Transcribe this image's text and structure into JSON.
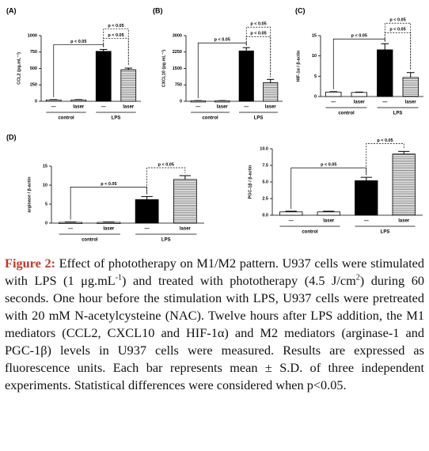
{
  "chart_data": [
    {
      "type": "bar",
      "label": "(A)",
      "ylabel": "CCL2 (pg.mL⁻¹)",
      "categories": [
        "—",
        "laser",
        "—",
        "laser"
      ],
      "groups": [
        "control",
        "LPS"
      ],
      "values": [
        20,
        20,
        760,
        480
      ],
      "errors": [
        5,
        5,
        30,
        25
      ],
      "colors": [
        "#ffffff",
        "#ffffff",
        "#000000",
        "#ffffff"
      ],
      "hatch": [
        false,
        false,
        false,
        true
      ],
      "ylim": [
        0,
        1000
      ],
      "yticks": [
        0,
        250,
        500,
        750,
        1000
      ],
      "annotations": [
        "p < 0.05",
        "p < 0.05",
        "p < 0.05"
      ]
    },
    {
      "type": "bar",
      "label": "(B)",
      "ylabel": "CXCL10 (pg.mL⁻¹)",
      "categories": [
        "—",
        "laser",
        "—",
        "laser"
      ],
      "groups": [
        "control",
        "LPS"
      ],
      "values": [
        20,
        20,
        2300,
        850
      ],
      "errors": [
        10,
        10,
        150,
        150
      ],
      "colors": [
        "#ffffff",
        "#ffffff",
        "#000000",
        "#ffffff"
      ],
      "hatch": [
        false,
        false,
        false,
        true
      ],
      "ylim": [
        0,
        3000
      ],
      "yticks": [
        0,
        750,
        1500,
        2250,
        3000
      ],
      "annotations": [
        "p < 0.05",
        "p < 0.05",
        "p < 0.05"
      ]
    },
    {
      "type": "bar",
      "label": "(C)",
      "ylabel": "HIF-1α / β-actin",
      "categories": [
        "—",
        "laser",
        "—",
        "laser"
      ],
      "groups": [
        "control",
        "LPS"
      ],
      "values": [
        1.1,
        1.0,
        11.5,
        4.7
      ],
      "errors": [
        0.1,
        0.1,
        1.5,
        1.2
      ],
      "colors": [
        "#ffffff",
        "#ffffff",
        "#000000",
        "#ffffff"
      ],
      "hatch": [
        false,
        false,
        false,
        true
      ],
      "ylim": [
        0,
        15
      ],
      "yticks": [
        0,
        5,
        10,
        15
      ],
      "annotations": [
        "p < 0.05",
        "p < 0.05",
        "p < 0.05"
      ]
    },
    {
      "type": "bar",
      "label": "(D)",
      "ylabel": "arginase / β-actin",
      "categories": [
        "—",
        "laser",
        "—",
        "laser"
      ],
      "groups": [
        "control",
        "LPS"
      ],
      "values": [
        0.2,
        0.2,
        6.2,
        11.5
      ],
      "errors": [
        0.1,
        0.1,
        0.8,
        1.0
      ],
      "colors": [
        "#ffffff",
        "#ffffff",
        "#000000",
        "#ffffff"
      ],
      "hatch": [
        false,
        false,
        false,
        true
      ],
      "ylim": [
        0,
        15
      ],
      "yticks": [
        0,
        5,
        10,
        15
      ],
      "annotations": [
        "p < 0.05",
        "p < 0.05"
      ]
    },
    {
      "type": "bar",
      "ylabel": "PGC-1β / β-actin",
      "categories": [
        "—",
        "laser",
        "—",
        "laser"
      ],
      "groups": [
        "control",
        "LPS"
      ],
      "values": [
        0.5,
        0.5,
        5.2,
        9.2
      ],
      "errors": [
        0.1,
        0.1,
        0.5,
        0.4
      ],
      "colors": [
        "#ffffff",
        "#ffffff",
        "#000000",
        "#ffffff"
      ],
      "hatch": [
        false,
        false,
        false,
        true
      ],
      "ylim": [
        0,
        10
      ],
      "yticks": [
        {
          "value": 0,
          "label": "0.0"
        },
        {
          "value": 2.5,
          "label": "2.5"
        },
        {
          "value": 5,
          "label": "5.0"
        },
        {
          "value": 7.5,
          "label": "7.5"
        },
        {
          "value": 10,
          "label": "10.0"
        }
      ],
      "annotations": [
        "p < 0.05",
        "p < 0.05"
      ]
    }
  ],
  "caption": {
    "label": "Figure 2:",
    "parts": [
      "Effect of phototherapy on M1/M2 pattern. U937 cells were stimulated with LPS (1 μg.mL",
      "-1",
      ") and treated with phototherapy (4.5 J/cm",
      "2",
      ") during 60 seconds. One hour before the stimulation with LPS, U937 cells were pretreated with 20 mM N-acetylcysteine (NAC). Twelve hours after LPS addition, the M1 mediators (CCL2, CXCL10 and HIF-1α) and M2 mediators (arginase-1 and PGC-1β) levels in U937 cells were measured. Results are expressed as fluorescence units. Each bar represents mean ± S.D. of three independent experiments. Statistical differences were considered when p<0.05."
    ]
  }
}
